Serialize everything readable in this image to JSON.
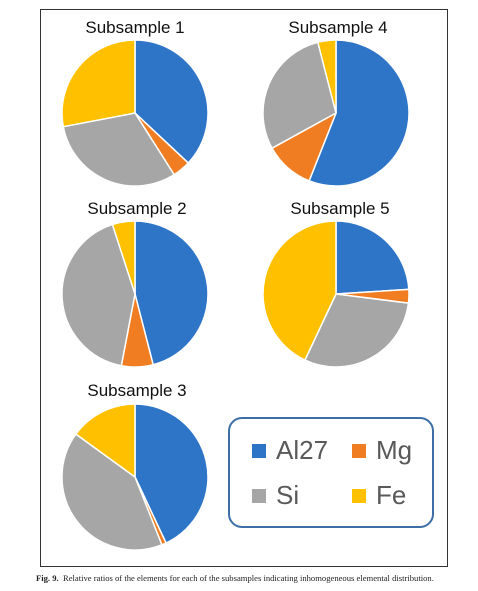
{
  "chart_data": [
    {
      "type": "pie",
      "title": "Subsample 1",
      "labels": [
        "Al27",
        "Mg",
        "Si",
        "Fe"
      ],
      "values": [
        37,
        4,
        31,
        28
      ]
    },
    {
      "type": "pie",
      "title": "Subsample 4",
      "labels": [
        "Al27",
        "Mg",
        "Si",
        "Fe"
      ],
      "values": [
        56,
        11,
        29,
        4
      ]
    },
    {
      "type": "pie",
      "title": "Subsample 2",
      "labels": [
        "Al27",
        "Mg",
        "Si",
        "Fe"
      ],
      "values": [
        46,
        7,
        42,
        5
      ]
    },
    {
      "type": "pie",
      "title": "Subsample 5",
      "labels": [
        "Al27",
        "Mg",
        "Si",
        "Fe"
      ],
      "values": [
        24,
        3,
        30,
        43
      ]
    },
    {
      "type": "pie",
      "title": "Subsample 3",
      "labels": [
        "Al27",
        "Mg",
        "Si",
        "Fe"
      ],
      "values": [
        43,
        1,
        41,
        15
      ]
    }
  ],
  "legend": [
    {
      "label": "Al27",
      "color": "#2e75c8"
    },
    {
      "label": "Mg",
      "color": "#f07d22"
    },
    {
      "label": "Si",
      "color": "#a6a6a6"
    },
    {
      "label": "Fe",
      "color": "#ffc000"
    }
  ],
  "caption": {
    "prefix": "Fig. 9.",
    "text": "Relative ratios of the elements for each of the subsamples indicating inhomogeneous elemental distribution."
  }
}
